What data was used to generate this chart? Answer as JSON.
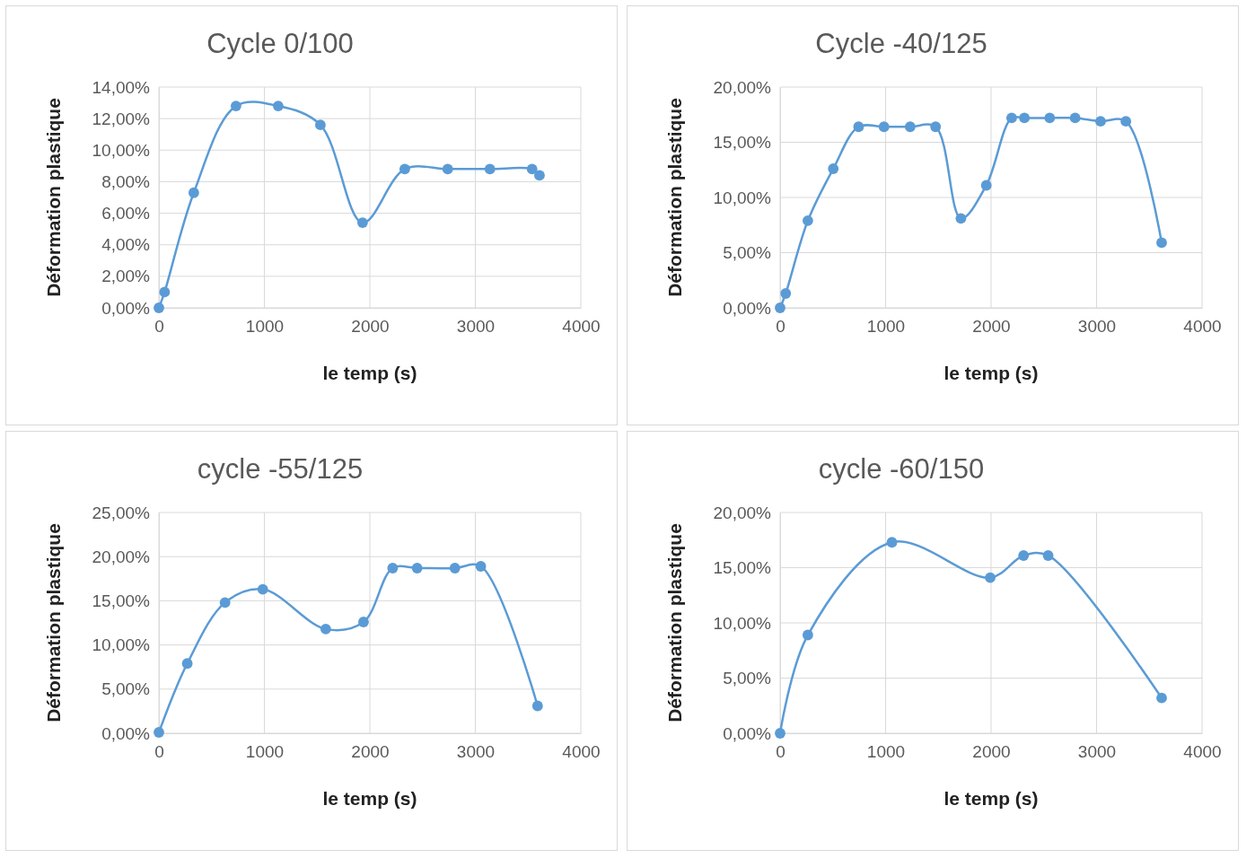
{
  "chart_data": [
    {
      "type": "line",
      "title": "Cycle 0/100",
      "xlabel": "le temp (s)",
      "ylabel": "Déformation plastique",
      "grid": true,
      "marker": "circle",
      "line_style": "solid",
      "xlim": [
        0,
        4000
      ],
      "xticks": [
        0,
        1000,
        2000,
        3000,
        4000
      ],
      "ylim": [
        0,
        14
      ],
      "yticks": [
        {
          "value": 0,
          "label": "0,00%"
        },
        {
          "value": 2,
          "label": "2,00%"
        },
        {
          "value": 4,
          "label": "4,00%"
        },
        {
          "value": 6,
          "label": "6,00%"
        },
        {
          "value": 8,
          "label": "8,00%"
        },
        {
          "value": 10,
          "label": "10,00%"
        },
        {
          "value": 12,
          "label": "12,00%"
        },
        {
          "value": 14,
          "label": "14,00%"
        }
      ],
      "series": [
        {
          "color": "#5b9bd5",
          "x": [
            0,
            54,
            331,
            731,
            1131,
            1531,
            1931,
            2331,
            2738,
            3138,
            3538,
            3608
          ],
          "values": [
            0,
            1.0,
            7.3,
            12.8,
            12.8,
            11.6,
            5.4,
            8.8,
            8.8,
            8.8,
            8.8,
            8.4
          ]
        }
      ]
    },
    {
      "type": "line",
      "title": "Cycle -40/125",
      "xlabel": "le temp (s)",
      "ylabel": "Déformation plastique",
      "grid": true,
      "marker": "circle",
      "line_style": "solid",
      "xlim": [
        0,
        4000
      ],
      "xticks": [
        0,
        1000,
        2000,
        3000,
        4000
      ],
      "ylim": [
        0,
        20
      ],
      "yticks": [
        {
          "value": 0,
          "label": "0,00%"
        },
        {
          "value": 5,
          "label": "5,00%"
        },
        {
          "value": 10,
          "label": "10,00%"
        },
        {
          "value": 15,
          "label": "15,00%"
        },
        {
          "value": 20,
          "label": "20,00%"
        }
      ],
      "series": [
        {
          "color": "#5b9bd5",
          "x": [
            0,
            53,
            263,
            504,
            744,
            985,
            1233,
            1474,
            1714,
            1955,
            2195,
            2316,
            2556,
            2797,
            3038,
            3278,
            3617
          ],
          "values": [
            0,
            1.3,
            7.9,
            12.6,
            16.4,
            16.4,
            16.4,
            16.4,
            8.1,
            11.1,
            17.2,
            17.2,
            17.2,
            17.2,
            16.9,
            16.9,
            5.9
          ]
        }
      ]
    },
    {
      "type": "line",
      "title": "cycle -55/125",
      "xlabel": "le temp (s)",
      "ylabel": "Déformation plastique",
      "grid": true,
      "marker": "circle",
      "line_style": "solid",
      "xlim": [
        0,
        4000
      ],
      "xticks": [
        0,
        1000,
        2000,
        3000,
        4000
      ],
      "ylim": [
        0,
        25
      ],
      "yticks": [
        {
          "value": 0,
          "label": "0,00%"
        },
        {
          "value": 5,
          "label": "5,00%"
        },
        {
          "value": 10,
          "label": "10,00%"
        },
        {
          "value": 15,
          "label": "15,00%"
        },
        {
          "value": 20,
          "label": "20,00%"
        },
        {
          "value": 25,
          "label": "25,00%"
        }
      ],
      "series": [
        {
          "color": "#5b9bd5",
          "x": [
            0,
            269,
            627,
            985,
            1582,
            1940,
            2216,
            2448,
            2806,
            3052,
            3590
          ],
          "values": [
            0.1,
            7.9,
            14.8,
            16.3,
            11.8,
            12.6,
            18.7,
            18.7,
            18.7,
            18.9,
            3.1
          ]
        }
      ]
    },
    {
      "type": "line",
      "title": "cycle -60/150",
      "xlabel": "le temp (s)",
      "ylabel": "Déformation plastique",
      "grid": true,
      "marker": "circle",
      "line_style": "solid",
      "xlim": [
        0,
        4000
      ],
      "xticks": [
        0,
        1000,
        2000,
        3000,
        4000
      ],
      "ylim": [
        0,
        20
      ],
      "yticks": [
        {
          "value": 0,
          "label": "0,00%"
        },
        {
          "value": 5,
          "label": "5,00%"
        },
        {
          "value": 10,
          "label": "10,00%"
        },
        {
          "value": 15,
          "label": "15,00%"
        },
        {
          "value": 20,
          "label": "20,00%"
        }
      ],
      "series": [
        {
          "color": "#5b9bd5",
          "x": [
            0,
            263,
            1060,
            1992,
            2308,
            2541,
            3617
          ],
          "values": [
            0,
            8.9,
            17.3,
            14.1,
            16.1,
            16.1,
            3.2
          ]
        }
      ]
    }
  ]
}
